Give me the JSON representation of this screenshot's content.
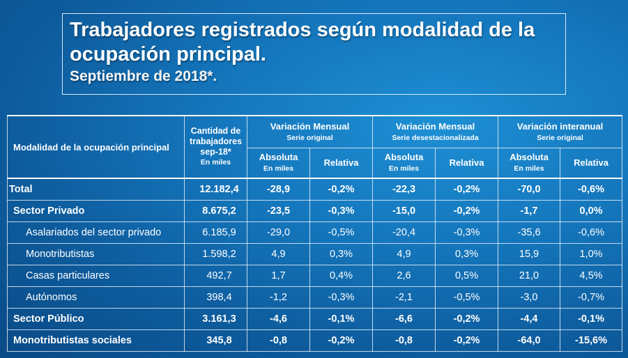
{
  "title": {
    "main": "Trabajadores registrados según modalidad de la ocupación principal.",
    "sub": "Septiembre de 2018*."
  },
  "table": {
    "header": {
      "col1": "Modalidad de la ocupación principal",
      "qty_line1": "Cantidad de",
      "qty_line2": "trabajadores",
      "qty_line3": "sep-18*",
      "qty_unit": "En miles",
      "groups": [
        {
          "title": "Variación Mensual",
          "subtitle": "Serie original"
        },
        {
          "title": "Variación Mensual",
          "subtitle": "Serie desestacionalizada"
        },
        {
          "title": "Variación interanual",
          "subtitle": "Serie original"
        }
      ],
      "abs_label": "Absoluta",
      "abs_unit": "En miles",
      "rel_label": "Relativa"
    },
    "rows": [
      {
        "label": "Total",
        "qty": "12.182,4",
        "v": [
          "-28,9",
          "-0,2%",
          "-22,3",
          "-0,2%",
          "-70,0",
          "-0,6%"
        ]
      },
      {
        "label": "Sector Privado",
        "qty": "8.675,2",
        "v": [
          "-23,5",
          "-0,3%",
          "-15,0",
          "-0,2%",
          "-1,7",
          "0,0%"
        ]
      },
      {
        "label": "Asalariados del sector privado",
        "qty": "6.185,9",
        "v": [
          "-29,0",
          "-0,5%",
          "-20,4",
          "-0,3%",
          "-35,6",
          "-0,6%"
        ]
      },
      {
        "label": "Monotributistas",
        "qty": "1.598,2",
        "v": [
          "4,9",
          "0,3%",
          "4,9",
          "0,3%",
          "15,9",
          "1,0%"
        ]
      },
      {
        "label": "Casas particulares",
        "qty": "492,7",
        "v": [
          "1,7",
          "0,4%",
          "2,6",
          "0,5%",
          "21,0",
          "4,5%"
        ]
      },
      {
        "label": "Autónomos",
        "qty": "398,4",
        "v": [
          "-1,2",
          "-0,3%",
          "-2,1",
          "-0,5%",
          "-3,0",
          "-0,7%"
        ]
      },
      {
        "label": "Sector Público",
        "qty": "3.161,3",
        "v": [
          "-4,6",
          "-0,1%",
          "-6,6",
          "-0,2%",
          "-4,4",
          "-0,1%"
        ]
      },
      {
        "label": "Monotributistas sociales",
        "qty": "345,8",
        "v": [
          "-0,8",
          "-0,2%",
          "-0,8",
          "-0,2%",
          "-64,0",
          "-15,6%"
        ]
      }
    ]
  }
}
